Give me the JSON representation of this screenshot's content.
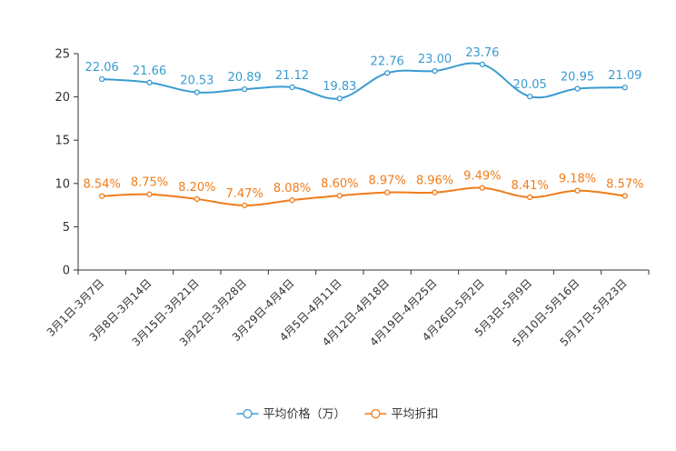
{
  "chart_data": {
    "type": "line",
    "title": "",
    "xlabel": "",
    "ylabel": "",
    "ylim": [
      0,
      25
    ],
    "yticks": [
      0,
      5,
      10,
      15,
      20,
      25
    ],
    "grid": false,
    "legend_position": "bottom-center",
    "categories": [
      "3月1日-3月7日",
      "3月8日-3月14日",
      "3月15日-3月21日",
      "3月22日-3月28日",
      "3月29日-4月4日",
      "4月5日-4月11日",
      "4月12日-4月18日",
      "4月19日-4月25日",
      "4月26日-5月2日",
      "5月3日-5月9日",
      "5月10日-5月16日",
      "5月17日-5月23日"
    ],
    "series": [
      {
        "name": "平均价格（万）",
        "color": "#3a9bd1",
        "values": [
          22.06,
          21.66,
          20.53,
          20.89,
          21.12,
          19.83,
          22.76,
          23.0,
          23.76,
          20.05,
          20.95,
          21.09
        ],
        "labels": [
          "22.06",
          "21.66",
          "20.53",
          "20.89",
          "21.12",
          "19.83",
          "22.76",
          "23.00",
          "23.76",
          "20.05",
          "20.95",
          "21.09"
        ]
      },
      {
        "name": "平均折扣",
        "color": "#f07c1a",
        "values": [
          8.54,
          8.75,
          8.2,
          7.47,
          8.08,
          8.6,
          8.97,
          8.96,
          9.49,
          8.41,
          9.18,
          8.57
        ],
        "labels": [
          "8.54%",
          "8.75%",
          "8.20%",
          "7.47%",
          "8.08%",
          "8.60%",
          "8.97%",
          "8.96%",
          "9.49%",
          "8.41%",
          "9.18%",
          "8.57%"
        ]
      }
    ]
  }
}
